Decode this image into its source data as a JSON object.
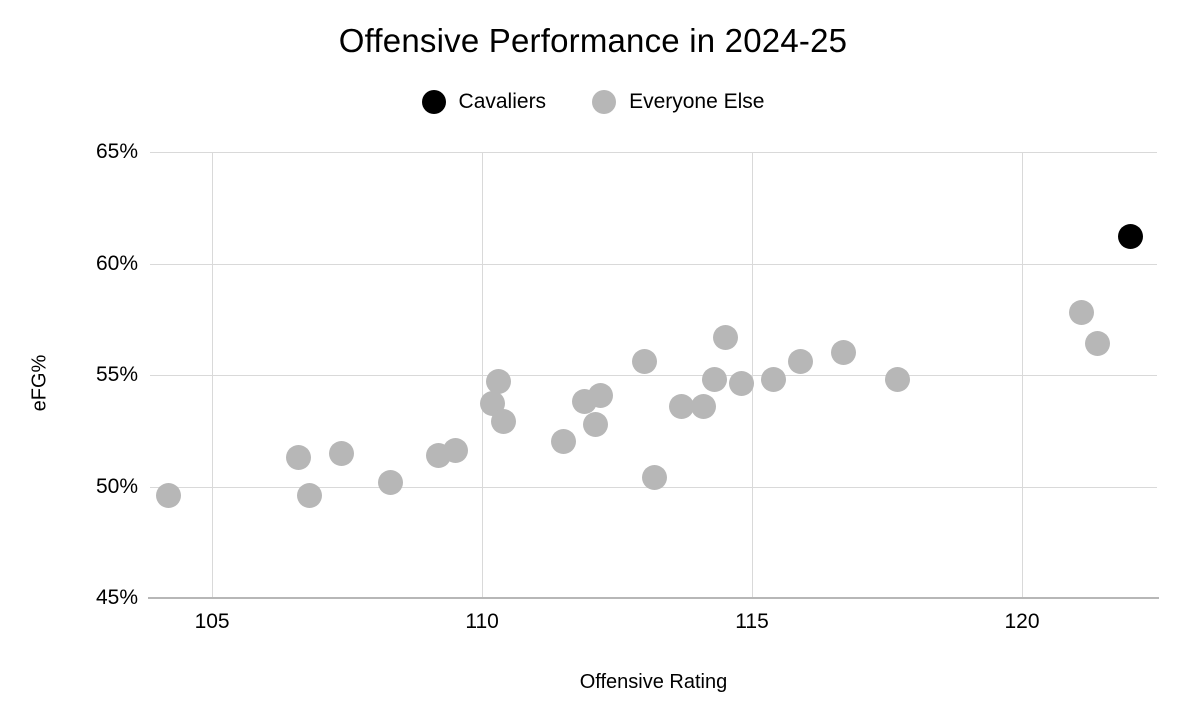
{
  "chart_data": {
    "type": "scatter",
    "title": "Offensive Performance in 2024-25",
    "xlabel": "Offensive Rating",
    "ylabel": "eFG%",
    "xlim": [
      103.85,
      122.5
    ],
    "ylim": [
      45,
      65
    ],
    "grid": true,
    "legend_position": "top-center",
    "x_ticks": [
      {
        "v": 105,
        "label": "105"
      },
      {
        "v": 110,
        "label": "110"
      },
      {
        "v": 115,
        "label": "115"
      },
      {
        "v": 120,
        "label": "120"
      }
    ],
    "y_ticks": [
      {
        "v": 65,
        "label": "65%"
      },
      {
        "v": 60,
        "label": "60%"
      },
      {
        "v": 55,
        "label": "55%"
      },
      {
        "v": 50,
        "label": "50%"
      },
      {
        "v": 45,
        "label": "45%"
      }
    ],
    "colors": {
      "background": "#ffffff",
      "grid": "#d9d9d9",
      "axis_line": "#b7b7b7",
      "text": "#000000",
      "cavaliers": "#000000",
      "everyone_else": "#b7b7b7"
    },
    "series": [
      {
        "name": "Everyone Else",
        "color": "#b7b7b7",
        "points": [
          [
            104.2,
            49.6
          ],
          [
            106.6,
            51.3
          ],
          [
            106.8,
            49.6
          ],
          [
            107.4,
            51.5
          ],
          [
            108.3,
            50.2
          ],
          [
            109.2,
            51.4
          ],
          [
            109.5,
            51.6
          ],
          [
            110.2,
            53.7
          ],
          [
            110.3,
            54.7
          ],
          [
            110.4,
            52.9
          ],
          [
            111.5,
            52.0
          ],
          [
            111.9,
            53.8
          ],
          [
            112.2,
            54.1
          ],
          [
            112.1,
            52.8
          ],
          [
            113.0,
            55.6
          ],
          [
            113.2,
            50.4
          ],
          [
            113.7,
            53.6
          ],
          [
            114.1,
            53.6
          ],
          [
            114.3,
            54.8
          ],
          [
            114.5,
            56.7
          ],
          [
            114.8,
            54.6
          ],
          [
            115.4,
            54.8
          ],
          [
            115.9,
            55.6
          ],
          [
            116.7,
            56.0
          ],
          [
            117.7,
            54.8
          ],
          [
            121.1,
            57.8
          ],
          [
            121.4,
            56.4
          ]
        ]
      },
      {
        "name": "Cavaliers",
        "color": "#000000",
        "points": [
          [
            122.0,
            61.2
          ]
        ]
      }
    ]
  },
  "legend": {
    "items": [
      {
        "label": "Cavaliers",
        "color": "#000000"
      },
      {
        "label": "Everyone Else",
        "color": "#b7b7b7"
      }
    ]
  }
}
